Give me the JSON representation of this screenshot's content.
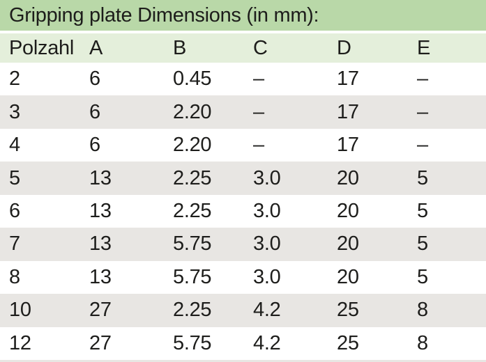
{
  "title": "Gripping plate Dimensions (in mm):",
  "table": {
    "columns": [
      "Polzahl",
      "A",
      "B",
      "C",
      "D",
      "E"
    ],
    "rows": [
      [
        "2",
        "6",
        "0.45",
        "–",
        "17",
        "–"
      ],
      [
        "3",
        "6",
        "2.20",
        "–",
        "17",
        "–"
      ],
      [
        "4",
        "6",
        "2.20",
        "–",
        "17",
        "–"
      ],
      [
        "5",
        "13",
        "2.25",
        "3.0",
        "20",
        "5"
      ],
      [
        "6",
        "13",
        "2.25",
        "3.0",
        "20",
        "5"
      ],
      [
        "7",
        "13",
        "5.75",
        "3.0",
        "20",
        "5"
      ],
      [
        "8",
        "13",
        "5.75",
        "3.0",
        "20",
        "5"
      ],
      [
        "10",
        "27",
        "2.25",
        "4.2",
        "25",
        "8"
      ],
      [
        "12",
        "27",
        "5.75",
        "4.2",
        "25",
        "8"
      ]
    ]
  },
  "chart_data": {
    "type": "table",
    "title": "Gripping plate Dimensions (in mm):",
    "columns": [
      "Polzahl",
      "A",
      "B",
      "C",
      "D",
      "E"
    ],
    "rows": [
      [
        "2",
        "6",
        "0.45",
        "–",
        "17",
        "–"
      ],
      [
        "3",
        "6",
        "2.20",
        "–",
        "17",
        "–"
      ],
      [
        "4",
        "6",
        "2.20",
        "–",
        "17",
        "–"
      ],
      [
        "5",
        "13",
        "2.25",
        "3.0",
        "20",
        "5"
      ],
      [
        "6",
        "13",
        "2.25",
        "3.0",
        "20",
        "5"
      ],
      [
        "7",
        "13",
        "5.75",
        "3.0",
        "20",
        "5"
      ],
      [
        "8",
        "13",
        "5.75",
        "3.0",
        "20",
        "5"
      ],
      [
        "10",
        "27",
        "2.25",
        "4.2",
        "25",
        "8"
      ],
      [
        "12",
        "27",
        "5.75",
        "4.2",
        "25",
        "8"
      ]
    ]
  },
  "colors": {
    "title_bg": "#b9d8a8",
    "header_bg": "#e4efdb",
    "stripe_bg": "#e8e6e3",
    "text": "#1d1d1b"
  }
}
